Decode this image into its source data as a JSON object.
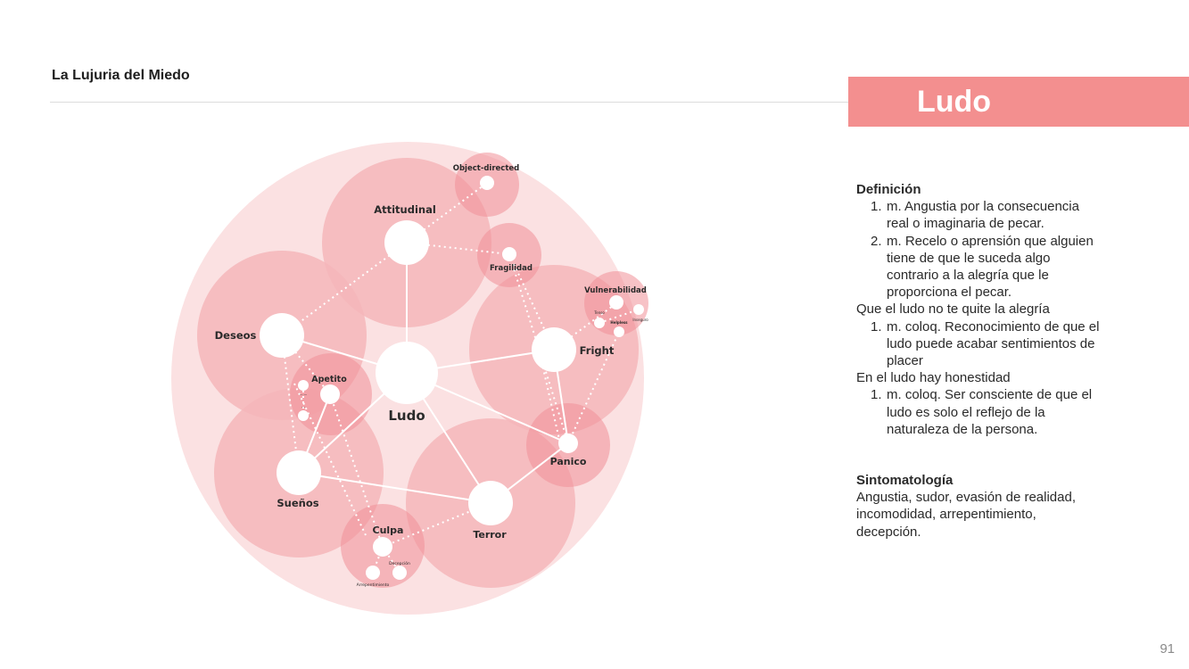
{
  "header": {
    "doc_title": "La Lujuria del Miedo",
    "section_title": "Ludo",
    "band_color": "#f38f8f"
  },
  "diagram": {
    "colors": {
      "outer_circle": "#fbe1e2",
      "cluster_circle": "#f4b6ba",
      "cluster_strong": "#f08f97",
      "node": "#ffffff",
      "link": "#ffffff"
    },
    "center": {
      "label": "Ludo"
    },
    "nodes": [
      {
        "id": "attitudinal",
        "label": "Attitudinal"
      },
      {
        "id": "object_directed",
        "label": "Object-directed"
      },
      {
        "id": "fragilidad",
        "label": "Fragilidad"
      },
      {
        "id": "vulnerabilidad",
        "label": "Vulnerabilidad"
      },
      {
        "id": "fright",
        "label": "Fright"
      },
      {
        "id": "panico",
        "label": "Panico"
      },
      {
        "id": "terror",
        "label": "Terror"
      },
      {
        "id": "culpa",
        "label": "Culpa"
      },
      {
        "id": "suenos",
        "label": "Sueños"
      },
      {
        "id": "deseos",
        "label": "Deseos"
      },
      {
        "id": "apetito",
        "label": "Apetito"
      }
    ],
    "micro_labels": {
      "tenso": "Tenso",
      "helpless": "Helpless",
      "inseguro": "Inseguro",
      "decepcion": "Decepción",
      "arrepentimiento": "Arrepentimiento",
      "apetito_a": "·······",
      "apetito_b": "···"
    }
  },
  "panel": {
    "definition_heading": "Definición",
    "definition_items": [
      {
        "num": "1.",
        "text": "m. Angustia por la consecuencia real o imaginaria de pecar."
      },
      {
        "num": "2.",
        "text": "m. Recelo o aprensión que alguien tiene de que le suceda algo contrario a la alegría que le proporciona el pecar."
      }
    ],
    "sub1_heading": "Que el ludo no te quite la alegría",
    "sub1_items": [
      {
        "num": "1.",
        "text": "m. coloq. Reconocimiento de que el ludo puede acabar sentimientos de placer"
      }
    ],
    "sub2_heading": "En el ludo hay honestidad",
    "sub2_items": [
      {
        "num": "1.",
        "text": "m. coloq. Ser consciente de que el ludo es solo el reflejo de la naturaleza de la persona."
      }
    ],
    "symptoms_heading": "Sintomatología",
    "symptoms_text": "Angustia, sudor, evasión de realidad, incomodidad, arrepentimiento, decepción."
  },
  "footer": {
    "page_number": "91"
  }
}
